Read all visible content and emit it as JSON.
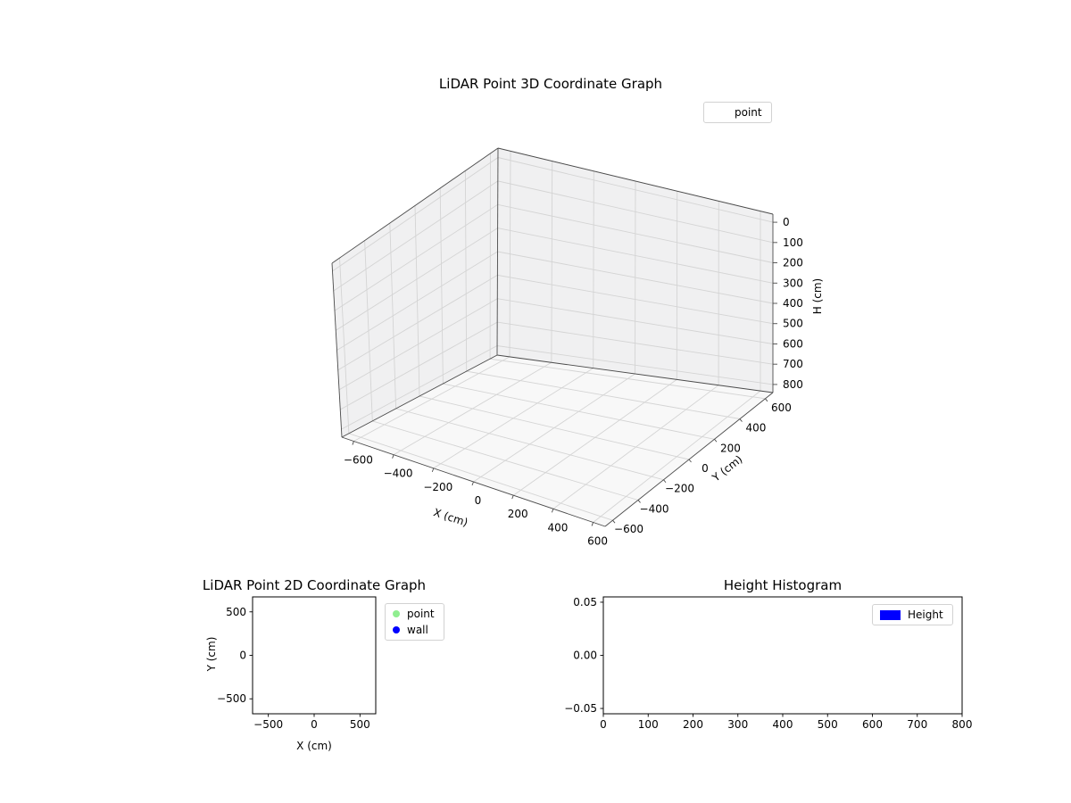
{
  "figure": {
    "background": "#ffffff"
  },
  "plot3d": {
    "title": "LiDAR Point 3D Coordinate Graph",
    "xlabel": "X (cm)",
    "ylabel": "Y (cm)",
    "zlabel": "H (cm)",
    "xticks": [
      {
        "v": -600,
        "label": "−600"
      },
      {
        "v": -400,
        "label": "−400"
      },
      {
        "v": -200,
        "label": "−200"
      },
      {
        "v": 0,
        "label": "0"
      },
      {
        "v": 200,
        "label": "200"
      },
      {
        "v": 400,
        "label": "400"
      },
      {
        "v": 600,
        "label": "600"
      }
    ],
    "yticks": [
      {
        "v": -600,
        "label": "−600"
      },
      {
        "v": -400,
        "label": "−400"
      },
      {
        "v": -200,
        "label": "−200"
      },
      {
        "v": 0,
        "label": "0"
      },
      {
        "v": 200,
        "label": "200"
      },
      {
        "v": 400,
        "label": "400"
      },
      {
        "v": 600,
        "label": "600"
      }
    ],
    "zticks": [
      {
        "v": 0,
        "label": "0"
      },
      {
        "v": 100,
        "label": "100"
      },
      {
        "v": 200,
        "label": "200"
      },
      {
        "v": 300,
        "label": "300"
      },
      {
        "v": 400,
        "label": "400"
      },
      {
        "v": 500,
        "label": "500"
      },
      {
        "v": 600,
        "label": "600"
      },
      {
        "v": 700,
        "label": "700"
      },
      {
        "v": 800,
        "label": "800"
      }
    ],
    "xlim": [
      -660,
      660
    ],
    "ylim": [
      -660,
      660
    ],
    "zlim": [
      -40,
      840
    ],
    "z_inverted": true,
    "legend": {
      "items": [
        {
          "label": "point",
          "marker": "none"
        }
      ]
    },
    "colors": {
      "pane": "#f0f0f1",
      "floor": "#f8f8f8",
      "grid": "#d4d4d4",
      "edge": "#4a4a4a"
    }
  },
  "plot2d": {
    "title": "LiDAR Point 2D Coordinate Graph",
    "xlabel": "X (cm)",
    "ylabel": "Y (cm)",
    "xticks": [
      {
        "v": -500,
        "label": "−500"
      },
      {
        "v": 0,
        "label": "0"
      },
      {
        "v": 500,
        "label": "500"
      }
    ],
    "yticks": [
      {
        "v": 500,
        "label": "500"
      },
      {
        "v": 0,
        "label": "0"
      },
      {
        "v": -500,
        "label": "−500"
      }
    ],
    "xlim": [
      -672,
      672
    ],
    "ylim": [
      -672,
      672
    ],
    "legend": {
      "items": [
        {
          "label": "point",
          "color": "#90ee90",
          "marker": "dot"
        },
        {
          "label": "wall",
          "color": "#0000ff",
          "marker": "dot"
        }
      ]
    }
  },
  "hist": {
    "title": "Height Histogram",
    "xticks": [
      {
        "v": 0,
        "label": "0"
      },
      {
        "v": 100,
        "label": "100"
      },
      {
        "v": 200,
        "label": "200"
      },
      {
        "v": 300,
        "label": "300"
      },
      {
        "v": 400,
        "label": "400"
      },
      {
        "v": 500,
        "label": "500"
      },
      {
        "v": 600,
        "label": "600"
      },
      {
        "v": 700,
        "label": "700"
      },
      {
        "v": 800,
        "label": "800"
      }
    ],
    "yticks": [
      {
        "v": 0.05,
        "label": "0.05"
      },
      {
        "v": 0,
        "label": "0.00"
      },
      {
        "v": -0.05,
        "label": "−0.05"
      }
    ],
    "xlim": [
      0,
      800
    ],
    "ylim": [
      -0.055,
      0.055
    ],
    "legend": {
      "items": [
        {
          "label": "Height",
          "color": "#0000ff",
          "marker": "rect"
        }
      ]
    }
  },
  "chart_data": [
    {
      "type": "scatter",
      "subtype": "scatter3d",
      "title": "LiDAR Point 3D Coordinate Graph",
      "xlabel": "X (cm)",
      "ylabel": "Y (cm)",
      "zlabel": "H (cm)",
      "xticks": [
        -600,
        -400,
        -200,
        0,
        200,
        400,
        600
      ],
      "yticks": [
        -600,
        -400,
        -200,
        0,
        200,
        400,
        600
      ],
      "zticks": [
        0,
        100,
        200,
        300,
        400,
        500,
        600,
        700,
        800
      ],
      "xlim": [
        -660,
        660
      ],
      "ylim": [
        -660,
        660
      ],
      "zlim": [
        0,
        800
      ],
      "z_axis_inverted": true,
      "grid": true,
      "legend_position": "upper right",
      "series": [
        {
          "name": "point",
          "x": [],
          "y": [],
          "z": []
        }
      ]
    },
    {
      "type": "scatter",
      "title": "LiDAR Point 2D Coordinate Graph",
      "xlabel": "X (cm)",
      "ylabel": "Y (cm)",
      "xticks": [
        -500,
        0,
        500
      ],
      "yticks": [
        -500,
        0,
        500
      ],
      "xlim": [
        -672,
        672
      ],
      "ylim": [
        -672,
        672
      ],
      "grid": false,
      "legend_position": "outside upper right",
      "series": [
        {
          "name": "point",
          "color": "#90ee90",
          "x": [],
          "y": []
        },
        {
          "name": "wall",
          "color": "#0000ff",
          "x": [],
          "y": []
        }
      ]
    },
    {
      "type": "bar",
      "subtype": "histogram",
      "title": "Height Histogram",
      "xlabel": "",
      "ylabel": "",
      "xticks": [
        0,
        100,
        200,
        300,
        400,
        500,
        600,
        700,
        800
      ],
      "yticks": [
        -0.05,
        0.0,
        0.05
      ],
      "xlim": [
        0,
        800
      ],
      "ylim": [
        -0.055,
        0.055
      ],
      "grid": false,
      "legend_position": "upper right",
      "series": [
        {
          "name": "Height",
          "color": "#0000ff",
          "values": []
        }
      ]
    }
  ]
}
